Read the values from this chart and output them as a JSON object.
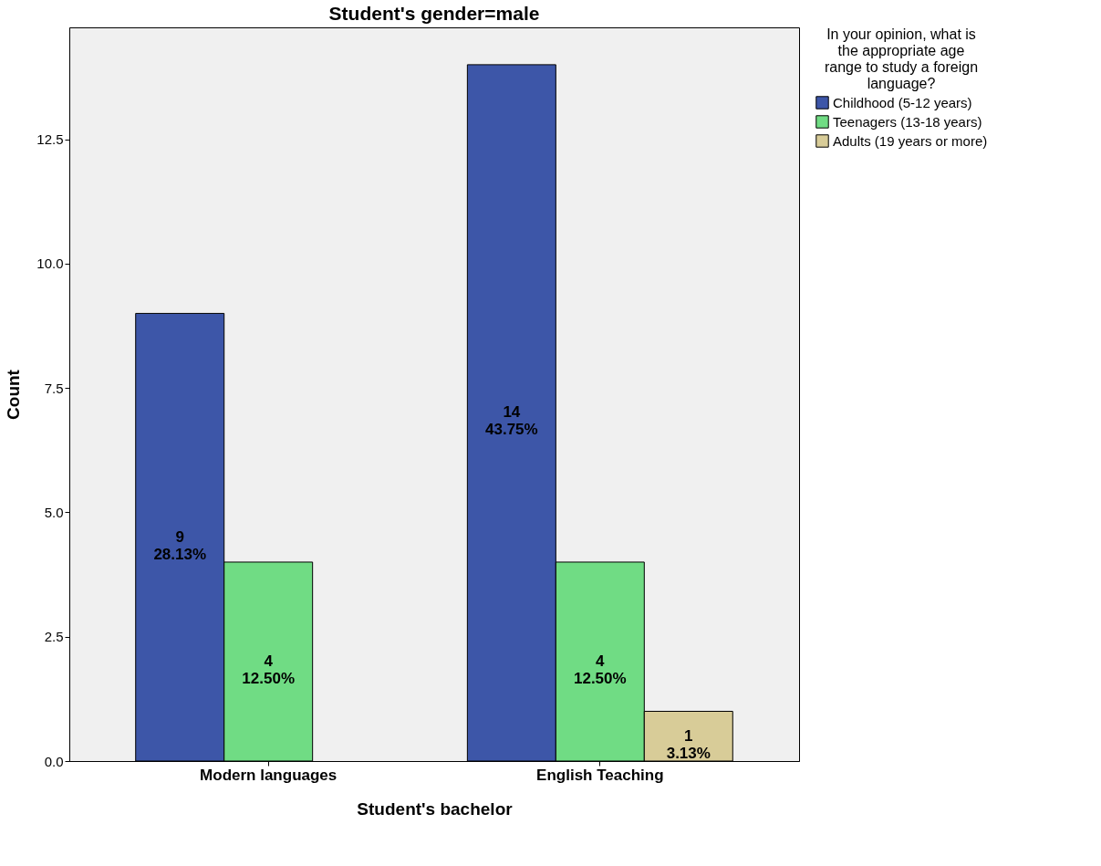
{
  "chart_data": {
    "type": "bar",
    "title": "Student's gender=male",
    "xlabel": "Student's bachelor",
    "ylabel": "Count",
    "legend_title": "In your opinion, what is the appropriate age range to study a foreign language?",
    "categories": [
      "Modern languages",
      "English Teaching"
    ],
    "series": [
      {
        "name": "Childhood (5-12 years)",
        "color": "#3d56a8",
        "values": [
          9,
          14
        ],
        "value_labels": [
          "9\n28.13%",
          "14\n43.75%"
        ]
      },
      {
        "name": "Teenagers (13-18 years)",
        "color": "#70dc84",
        "values": [
          4,
          4
        ],
        "value_labels": [
          "4\n12.50%",
          "4\n12.50%"
        ]
      },
      {
        "name": "Adults (19 years or more)",
        "color": "#d8cc98",
        "values": [
          null,
          1
        ],
        "value_labels": [
          null,
          "1\n3.13%"
        ]
      }
    ],
    "ylim": [
      0,
      14.75
    ],
    "yticks": [
      {
        "value": 0,
        "label": "0.0"
      },
      {
        "value": 2.5,
        "label": "2.5"
      },
      {
        "value": 5,
        "label": "5.0"
      },
      {
        "value": 7.5,
        "label": "7.5"
      },
      {
        "value": 10,
        "label": "10.0"
      },
      {
        "value": 12.5,
        "label": "12.5"
      }
    ],
    "grid": false,
    "legend": "top right"
  }
}
